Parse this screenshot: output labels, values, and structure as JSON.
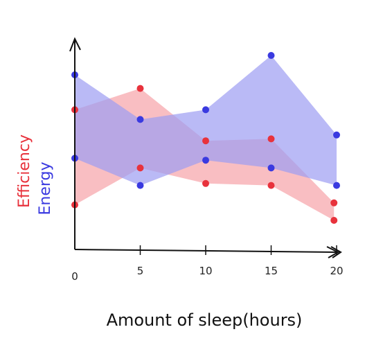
{
  "chart_data": {
    "type": "area",
    "xlabel": "Amount of sleep(hours)",
    "ylabels": [
      {
        "text": "Efficiency",
        "color": "#e8323c"
      },
      {
        "text": "Energy",
        "color": "#3a3ae0"
      }
    ],
    "x_ticks": [
      "0",
      "5",
      "10",
      "15",
      "20"
    ],
    "xlim": [
      0,
      20
    ],
    "ylim": [
      0,
      10
    ],
    "grid": false,
    "series": [
      {
        "name": "Efficiency",
        "color": "#e8323c",
        "fill": "#f7a3a8",
        "upper": [
          {
            "x": 0,
            "y": 7.2
          },
          {
            "x": 5,
            "y": 8.3
          },
          {
            "x": 10,
            "y": 5.6
          },
          {
            "x": 15,
            "y": 5.7
          },
          {
            "x": 19.8,
            "y": 2.4
          }
        ],
        "lower": [
          {
            "x": 0,
            "y": 2.3
          },
          {
            "x": 5,
            "y": 4.2
          },
          {
            "x": 10,
            "y": 3.4
          },
          {
            "x": 15,
            "y": 3.3
          },
          {
            "x": 19.8,
            "y": 1.5
          }
        ]
      },
      {
        "name": "Energy",
        "color": "#3a3ae0",
        "fill": "#9c9cf2",
        "upper": [
          {
            "x": 0,
            "y": 9.0
          },
          {
            "x": 5,
            "y": 6.7
          },
          {
            "x": 10,
            "y": 7.2
          },
          {
            "x": 15,
            "y": 10.0
          },
          {
            "x": 20,
            "y": 5.9
          }
        ],
        "lower": [
          {
            "x": 0,
            "y": 4.7
          },
          {
            "x": 5,
            "y": 3.3
          },
          {
            "x": 10,
            "y": 4.6
          },
          {
            "x": 15,
            "y": 4.2
          },
          {
            "x": 20,
            "y": 3.3
          }
        ]
      }
    ]
  }
}
